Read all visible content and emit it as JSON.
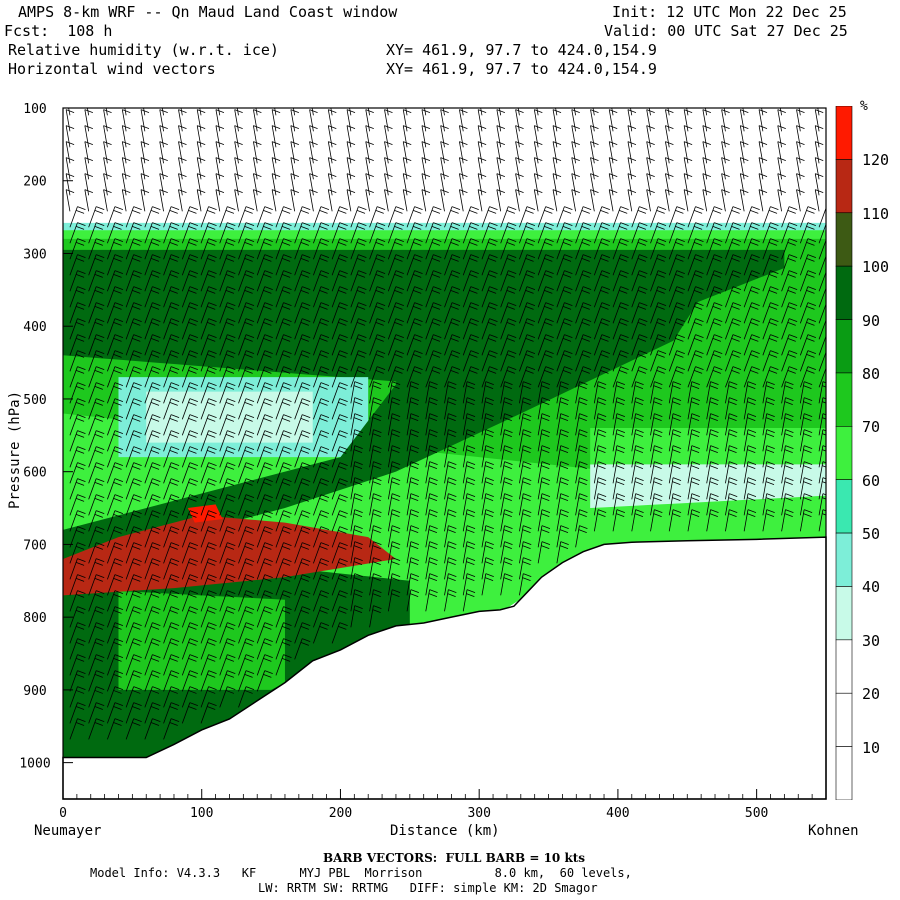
{
  "header": {
    "title": "AMPS 8-km WRF -- Qn Maud Land Coast window",
    "init": "Init: 12 UTC Mon 22 Dec 25",
    "fcst": "Fcst:  108 h",
    "valid": "Valid: 00 UTC Sat 27 Dec 25",
    "field1": "Relative humidity (w.r.t. ice)",
    "field1_xy": "XY= 461.9, 97.7 to 424.0,154.9",
    "field2": "Horizontal wind vectors",
    "field2_xy": "XY= 461.9, 97.7 to 424.0,154.9"
  },
  "footer": {
    "barb_note": "BARB VECTORS:  FULL BARB = 10 kts",
    "model_info_line1": "Model Info: V4.3.3   KF      MYJ PBL  Morrison          8.0 km,  60 levels,",
    "model_info_line2": "LW: RRTM SW: RRTMG   DIFF: simple KM: 2D Smagor"
  },
  "chart_data": {
    "type": "heatmap",
    "xlabel": "Distance (km)",
    "ylabel": "Pressure (hPa)",
    "x_ticks": [
      0,
      100,
      200,
      300,
      400,
      500
    ],
    "y_ticks": [
      100,
      200,
      300,
      400,
      500,
      600,
      700,
      800,
      900,
      1000
    ],
    "xlim": [
      0,
      550
    ],
    "ylim": [
      100,
      1050
    ],
    "y_inverted": true,
    "left_endpoint": "Neumayer",
    "right_endpoint": "Kohnen",
    "colorbar": {
      "unit": "%",
      "levels": [
        10,
        20,
        30,
        40,
        50,
        60,
        70,
        80,
        90,
        100,
        110,
        120
      ],
      "colors": [
        "#ffffff",
        "#ffffff",
        "#ffffff",
        "#c8fae8",
        "#7deed8",
        "#3ae8b0",
        "#3ef03e",
        "#1ec81e",
        "#0a9c14",
        "#006a10",
        "#3d5a14",
        "#b82814",
        "#ff1a00"
      ]
    },
    "terrain_profile": [
      [
        0,
        993
      ],
      [
        30,
        993
      ],
      [
        60,
        993
      ],
      [
        80,
        975
      ],
      [
        100,
        955
      ],
      [
        120,
        940
      ],
      [
        140,
        915
      ],
      [
        160,
        890
      ],
      [
        180,
        860
      ],
      [
        200,
        845
      ],
      [
        220,
        825
      ],
      [
        240,
        812
      ],
      [
        260,
        808
      ],
      [
        280,
        800
      ],
      [
        300,
        792
      ],
      [
        315,
        790
      ],
      [
        325,
        785
      ],
      [
        335,
        765
      ],
      [
        345,
        745
      ],
      [
        360,
        725
      ],
      [
        375,
        710
      ],
      [
        390,
        700
      ],
      [
        410,
        697
      ],
      [
        450,
        695
      ],
      [
        500,
        693
      ],
      [
        550,
        690
      ]
    ]
  }
}
